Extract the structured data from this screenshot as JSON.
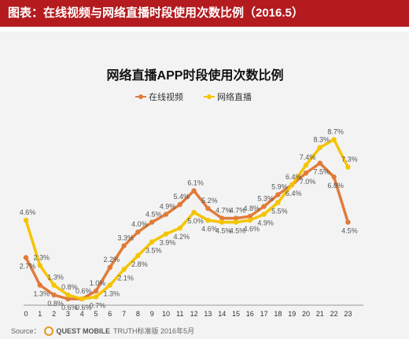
{
  "header": {
    "title": "图表：在线视频与网络直播时段使用次数比例（2016.5）"
  },
  "source": {
    "prefix": "Source：",
    "brand": "QUEST MOBILE",
    "text": "TRUTH标准版 2016年5月"
  },
  "colors": {
    "header_bg": "#b31b1f",
    "video": "#e07b39",
    "live": "#f5c400"
  },
  "chart_data": {
    "type": "line",
    "title": "网络直播APP时段使用次数比例",
    "xlabel": "",
    "ylabel": "",
    "x": [
      0,
      1,
      2,
      3,
      4,
      5,
      6,
      7,
      8,
      9,
      10,
      11,
      12,
      13,
      14,
      15,
      16,
      17,
      18,
      19,
      20,
      21,
      22,
      23
    ],
    "ylim": [
      0,
      9.5
    ],
    "grid": false,
    "legend_position": "top",
    "series": [
      {
        "name": "在线视频",
        "color": "#e07b39",
        "values": [
          2.7,
          1.3,
          0.8,
          0.6,
          0.6,
          1.0,
          2.2,
          3.3,
          4.0,
          4.5,
          4.9,
          5.4,
          6.1,
          5.2,
          4.7,
          4.7,
          4.8,
          5.3,
          5.9,
          6.4,
          7.0,
          7.5,
          6.8,
          4.5
        ]
      },
      {
        "name": "网络直播",
        "color": "#f5c400",
        "values": [
          4.6,
          2.3,
          1.3,
          0.8,
          0.6,
          0.7,
          1.3,
          2.1,
          2.8,
          3.5,
          3.9,
          4.2,
          5.0,
          4.6,
          4.5,
          4.5,
          4.6,
          4.9,
          5.5,
          6.4,
          7.4,
          8.3,
          8.7,
          7.3
        ]
      }
    ]
  }
}
